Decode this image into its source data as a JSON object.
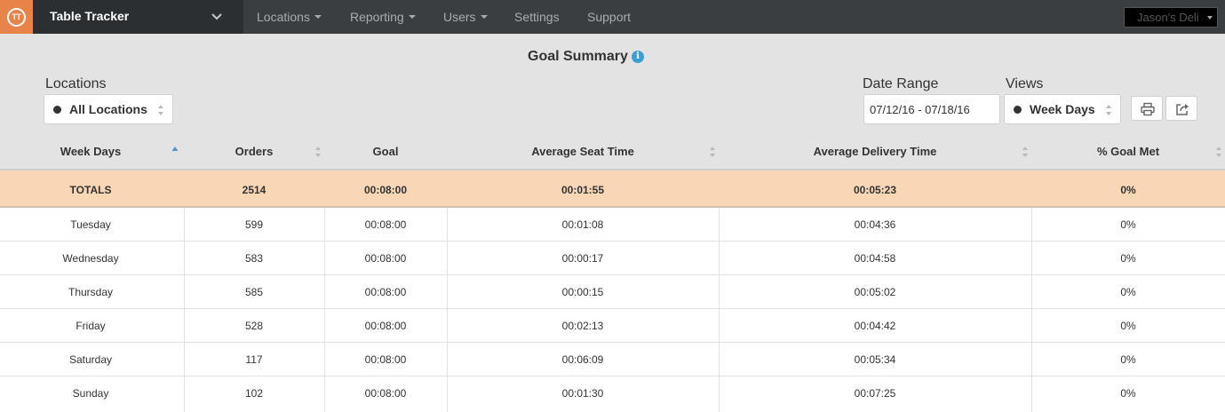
{
  "nav": {
    "logo_text": "TT",
    "app_title": "Table Tracker",
    "menu": [
      {
        "label": "Locations",
        "has_dropdown": true
      },
      {
        "label": "Reporting",
        "has_dropdown": true
      },
      {
        "label": "Users",
        "has_dropdown": true
      },
      {
        "label": "Settings",
        "has_dropdown": false
      },
      {
        "label": "Support",
        "has_dropdown": false
      }
    ],
    "account_label": "Jason's Deli"
  },
  "page": {
    "title": "Goal Summary",
    "info_icon": "i"
  },
  "filters": {
    "locations_label": "Locations",
    "locations_value": "All Locations",
    "date_range_label": "Date Range",
    "date_range_value": "07/12/16 - 07/18/16",
    "views_label": "Views",
    "views_value": "Week Days"
  },
  "table": {
    "columns": [
      "Week Days",
      "Orders",
      "Goal",
      "Average Seat Time",
      "Average Delivery Time",
      "% Goal Met"
    ],
    "sorted_column": "Week Days",
    "sort_direction": "ascending",
    "totals": [
      "TOTALS",
      "2514",
      "00:08:00",
      "00:01:55",
      "00:05:23",
      "0%"
    ],
    "rows": [
      [
        "Tuesday",
        "599",
        "00:08:00",
        "00:01:08",
        "00:04:36",
        "0%"
      ],
      [
        "Wednesday",
        "583",
        "00:08:00",
        "00:00:17",
        "00:04:58",
        "0%"
      ],
      [
        "Thursday",
        "585",
        "00:08:00",
        "00:00:15",
        "00:05:02",
        "0%"
      ],
      [
        "Friday",
        "528",
        "00:08:00",
        "00:02:13",
        "00:04:42",
        "0%"
      ],
      [
        "Saturday",
        "117",
        "00:08:00",
        "00:06:09",
        "00:05:34",
        "0%"
      ],
      [
        "Sunday",
        "102",
        "00:08:00",
        "00:01:30",
        "00:07:25",
        "0%"
      ]
    ]
  },
  "colors": {
    "nav_bg": "#3b3e41",
    "logo_bg": "#e8834a",
    "panel_bg": "#e3e3e4",
    "totals_bg": "#f8d6b6",
    "info_blue": "#3b9fd4",
    "sort_active": "#5b8fd6"
  }
}
